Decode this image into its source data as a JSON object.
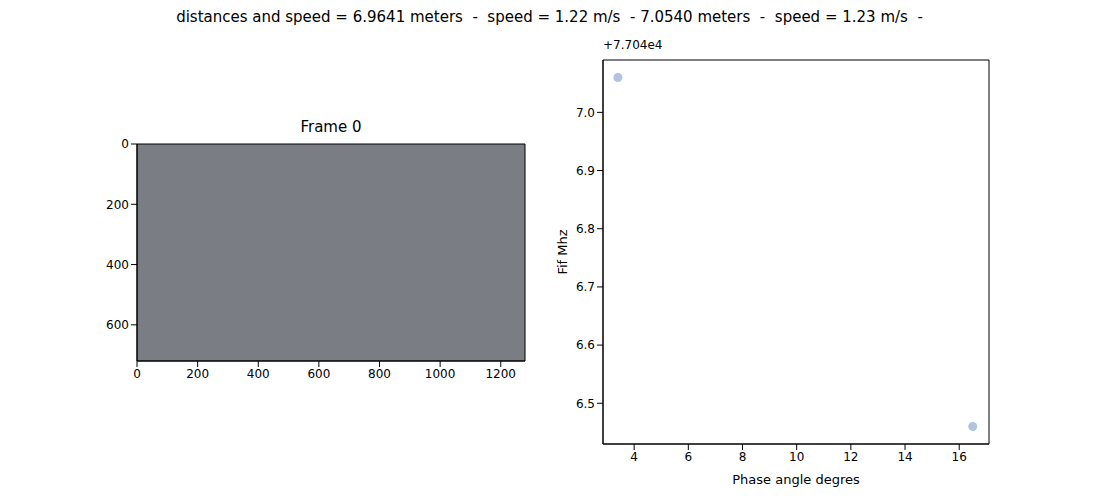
{
  "title": "distances and speed = 6.9641 meters  -  speed = 1.22 m/s  - 7.0540 meters  -  speed = 1.23 m/s  -",
  "chart_data": [
    {
      "type": "image",
      "title": "Frame 0",
      "xlim": [
        0,
        1280
      ],
      "ylim": [
        720,
        0
      ],
      "xticks": [
        0,
        200,
        400,
        600,
        800,
        1000,
        1200
      ],
      "yticks": [
        0,
        200,
        400,
        600
      ]
    },
    {
      "type": "scatter",
      "x_label": "Phase angle degres",
      "y_label": "Fif Mhz",
      "annotations": [
        "+7.704e4"
      ],
      "x": [
        3.4,
        16.5
      ],
      "values": [
        77047.06,
        77046.46
      ],
      "color": "#b0c4de",
      "xlim": [
        2.85,
        17.1
      ],
      "ylim": [
        77046.43,
        77047.09
      ],
      "xticks": [
        4,
        6,
        8,
        10,
        12,
        14,
        16
      ],
      "yticks": [
        {
          "value": 77046.5,
          "label": "6.5"
        },
        {
          "value": 77046.6,
          "label": "6.6"
        },
        {
          "value": 77046.7,
          "label": "6.7"
        },
        {
          "value": 77046.8,
          "label": "6.8"
        },
        {
          "value": 77046.9,
          "label": "6.9"
        },
        {
          "value": 77047.0,
          "label": "7.0"
        }
      ]
    }
  ]
}
